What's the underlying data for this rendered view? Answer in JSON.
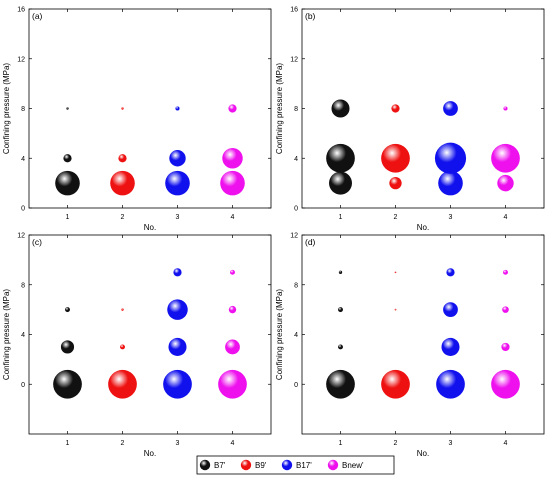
{
  "colors": {
    "B7": "#111111",
    "B9": "#ee1111",
    "B17": "#1111ee",
    "Bnew": "#ee11ee"
  },
  "legend": {
    "entries": [
      {
        "label": "B7'",
        "color_key": "B7"
      },
      {
        "label": "B9'",
        "color_key": "B9"
      },
      {
        "label": "B17'",
        "color_key": "B17"
      },
      {
        "label": "Bnew'",
        "color_key": "Bnew"
      }
    ]
  },
  "chart_data": [
    {
      "type": "scatter",
      "panel_label": "(a)",
      "xlabel": "No.",
      "ylabel": "Confining pressure (MPa)",
      "xlim": [
        0.3,
        4.7
      ],
      "ylim": [
        0,
        16
      ],
      "x_ticks": [
        1,
        2,
        3,
        4
      ],
      "y_ticks": [
        0,
        4,
        8,
        12,
        16
      ],
      "grid": false,
      "series": [
        {
          "name": "B7'",
          "color_key": "B7",
          "points": [
            {
              "x": 1,
              "y": 2,
              "size": 3
            },
            {
              "x": 1,
              "y": 4,
              "size": 1
            },
            {
              "x": 1,
              "y": 8,
              "size": 0.3
            }
          ]
        },
        {
          "name": "B9'",
          "color_key": "B9",
          "points": [
            {
              "x": 2,
              "y": 2,
              "size": 3
            },
            {
              "x": 2,
              "y": 4,
              "size": 1
            },
            {
              "x": 2,
              "y": 8,
              "size": 0.3
            }
          ]
        },
        {
          "name": "B17'",
          "color_key": "B17",
          "points": [
            {
              "x": 3,
              "y": 2,
              "size": 3
            },
            {
              "x": 3,
              "y": 4,
              "size": 2
            },
            {
              "x": 3,
              "y": 8,
              "size": 0.5
            }
          ]
        },
        {
          "name": "Bnew'",
          "color_key": "Bnew",
          "points": [
            {
              "x": 4,
              "y": 2,
              "size": 3
            },
            {
              "x": 4,
              "y": 4,
              "size": 2.5
            },
            {
              "x": 4,
              "y": 8,
              "size": 1
            }
          ]
        }
      ]
    },
    {
      "type": "scatter",
      "panel_label": "(b)",
      "xlabel": "No.",
      "ylabel": "Confining pressure (MPa)",
      "xlim": [
        0.3,
        4.7
      ],
      "ylim": [
        0,
        16
      ],
      "x_ticks": [
        1,
        2,
        3,
        4
      ],
      "y_ticks": [
        0,
        4,
        8,
        12,
        16
      ],
      "grid": false,
      "series": [
        {
          "name": "B7'",
          "color_key": "B7",
          "points": [
            {
              "x": 1,
              "y": 2,
              "size": 2.8
            },
            {
              "x": 1,
              "y": 4,
              "size": 3.5
            },
            {
              "x": 1,
              "y": 8,
              "size": 2.2
            }
          ]
        },
        {
          "name": "B9'",
          "color_key": "B9",
          "points": [
            {
              "x": 2,
              "y": 2,
              "size": 1.5
            },
            {
              "x": 2,
              "y": 4,
              "size": 3.5
            },
            {
              "x": 2,
              "y": 8,
              "size": 1
            }
          ]
        },
        {
          "name": "B17'",
          "color_key": "B17",
          "points": [
            {
              "x": 3,
              "y": 2,
              "size": 3
            },
            {
              "x": 3,
              "y": 4,
              "size": 3.8
            },
            {
              "x": 3,
              "y": 8,
              "size": 1.8
            }
          ]
        },
        {
          "name": "Bnew'",
          "color_key": "Bnew",
          "points": [
            {
              "x": 4,
              "y": 2,
              "size": 2
            },
            {
              "x": 4,
              "y": 4,
              "size": 3.5
            },
            {
              "x": 4,
              "y": 8,
              "size": 0.5
            }
          ]
        }
      ]
    },
    {
      "type": "scatter",
      "panel_label": "(c)",
      "xlabel": "No.",
      "ylabel": "Confining pressure (MPa)",
      "xlim": [
        0.3,
        4.7
      ],
      "ylim": [
        -4,
        12
      ],
      "x_ticks": [
        1,
        2,
        3,
        4
      ],
      "y_ticks": [
        0,
        4,
        8,
        12
      ],
      "grid": false,
      "series": [
        {
          "name": "B7'",
          "color_key": "B7",
          "points": [
            {
              "x": 1,
              "y": 0,
              "size": 3.5
            },
            {
              "x": 1,
              "y": 3,
              "size": 1.6
            },
            {
              "x": 1,
              "y": 6,
              "size": 0.6
            }
          ]
        },
        {
          "name": "B9'",
          "color_key": "B9",
          "points": [
            {
              "x": 2,
              "y": 0,
              "size": 3.5
            },
            {
              "x": 2,
              "y": 3,
              "size": 0.6
            },
            {
              "x": 2,
              "y": 6,
              "size": 0.3
            }
          ]
        },
        {
          "name": "B17'",
          "color_key": "B17",
          "points": [
            {
              "x": 3,
              "y": 0,
              "size": 3.5
            },
            {
              "x": 3,
              "y": 3,
              "size": 2.2
            },
            {
              "x": 3,
              "y": 6,
              "size": 2.5
            },
            {
              "x": 3,
              "y": 9,
              "size": 1
            }
          ]
        },
        {
          "name": "Bnew'",
          "color_key": "Bnew",
          "points": [
            {
              "x": 4,
              "y": 0,
              "size": 3.5
            },
            {
              "x": 4,
              "y": 3,
              "size": 1.8
            },
            {
              "x": 4,
              "y": 6,
              "size": 0.9
            },
            {
              "x": 4,
              "y": 9,
              "size": 0.6
            }
          ]
        }
      ]
    },
    {
      "type": "scatter",
      "panel_label": "(d)",
      "xlabel": "No.",
      "ylabel": "Confining pressure (MPa)",
      "xlim": [
        0.3,
        4.7
      ],
      "ylim": [
        -4,
        12
      ],
      "x_ticks": [
        1,
        2,
        3,
        4
      ],
      "y_ticks": [
        0,
        4,
        8,
        12
      ],
      "grid": false,
      "series": [
        {
          "name": "B7'",
          "color_key": "B7",
          "points": [
            {
              "x": 1,
              "y": 0,
              "size": 3.5
            },
            {
              "x": 1,
              "y": 3,
              "size": 0.6
            },
            {
              "x": 1,
              "y": 6,
              "size": 0.6
            },
            {
              "x": 1,
              "y": 9,
              "size": 0.4
            }
          ]
        },
        {
          "name": "B9'",
          "color_key": "B9",
          "points": [
            {
              "x": 2,
              "y": 0,
              "size": 3.5
            },
            {
              "x": 2,
              "y": 6,
              "size": 0.2
            },
            {
              "x": 2,
              "y": 9,
              "size": 0.2
            }
          ]
        },
        {
          "name": "B17'",
          "color_key": "B17",
          "points": [
            {
              "x": 3,
              "y": 0,
              "size": 3.5
            },
            {
              "x": 3,
              "y": 3,
              "size": 2.2
            },
            {
              "x": 3,
              "y": 6,
              "size": 1.8
            },
            {
              "x": 3,
              "y": 9,
              "size": 1
            }
          ]
        },
        {
          "name": "Bnew'",
          "color_key": "Bnew",
          "points": [
            {
              "x": 4,
              "y": 0,
              "size": 3.5
            },
            {
              "x": 4,
              "y": 3,
              "size": 1
            },
            {
              "x": 4,
              "y": 6,
              "size": 0.8
            },
            {
              "x": 4,
              "y": 9,
              "size": 0.6
            }
          ]
        }
      ]
    }
  ]
}
